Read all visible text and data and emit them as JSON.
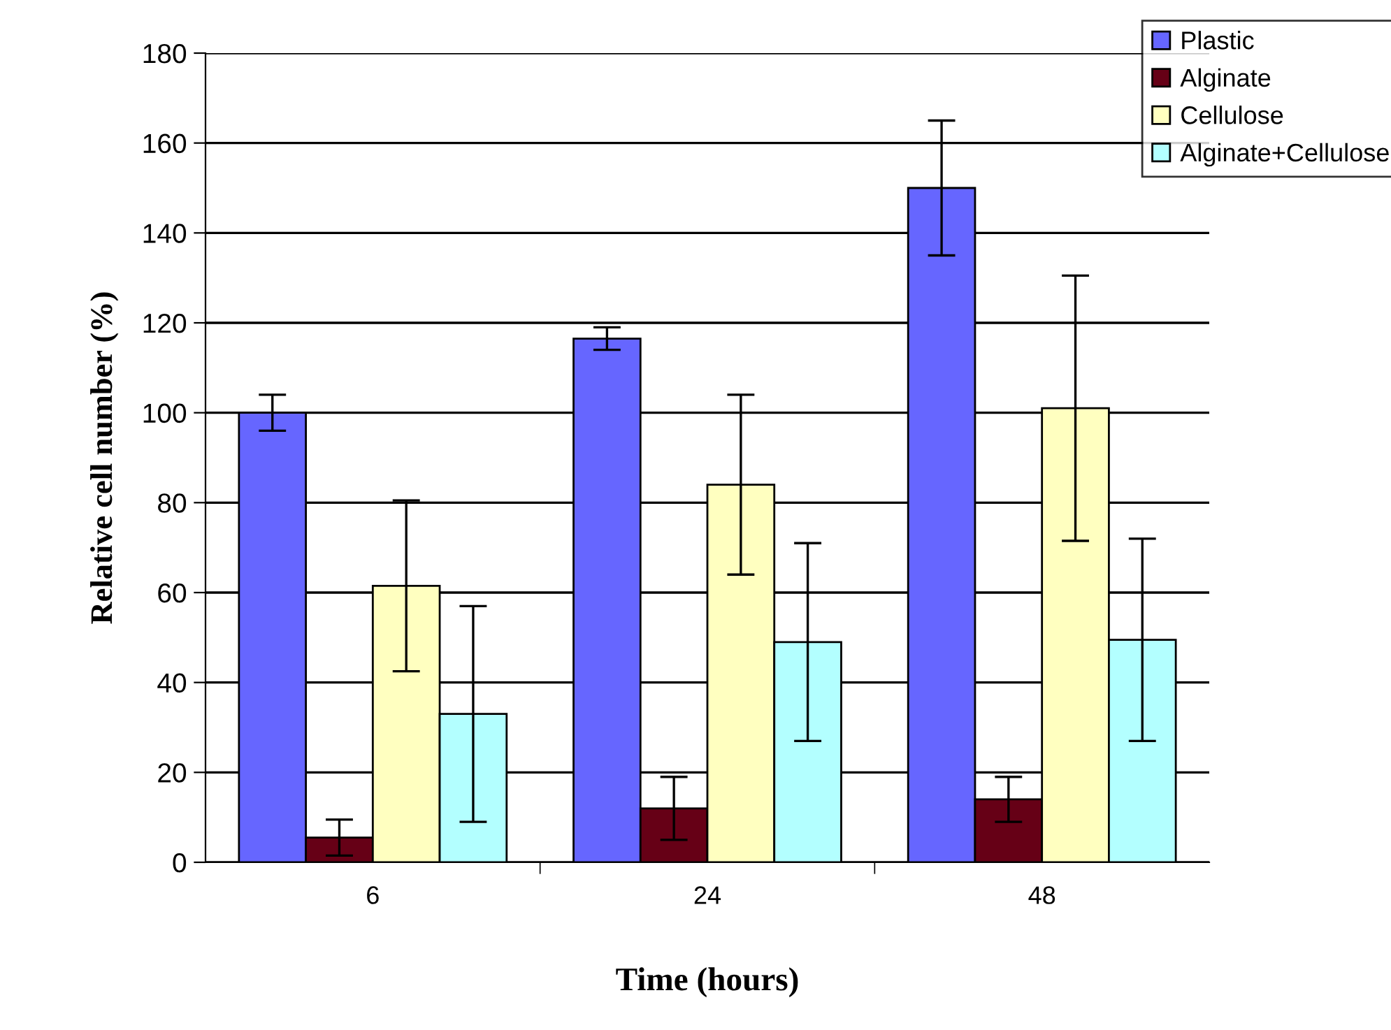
{
  "chart_data": {
    "type": "bar",
    "xlabel": "Time (hours)",
    "ylabel": "Relative cell number (%)",
    "categories": [
      "6",
      "24",
      "48"
    ],
    "series": [
      {
        "name": "Plastic",
        "color": "#6666ff",
        "values": [
          100,
          116.5,
          150
        ],
        "errors": [
          4,
          2.5,
          15
        ]
      },
      {
        "name": "Alginate",
        "color": "#660016",
        "values": [
          5.5,
          12,
          14
        ],
        "errors": [
          4,
          7,
          5
        ]
      },
      {
        "name": "Cellulose",
        "color": "#ffffc0",
        "values": [
          61.5,
          84,
          101
        ],
        "errors": [
          19,
          20,
          29.5
        ]
      },
      {
        "name": "Alginate+Cellulose",
        "color": "#b3ffff",
        "values": [
          33,
          49,
          49.5
        ],
        "errors": [
          24,
          22,
          22.5
        ]
      }
    ],
    "ylim": [
      0,
      180
    ],
    "yticks": [
      0,
      20,
      40,
      60,
      80,
      100,
      120,
      140,
      160,
      180
    ],
    "grid": "y",
    "legend": "top right"
  }
}
